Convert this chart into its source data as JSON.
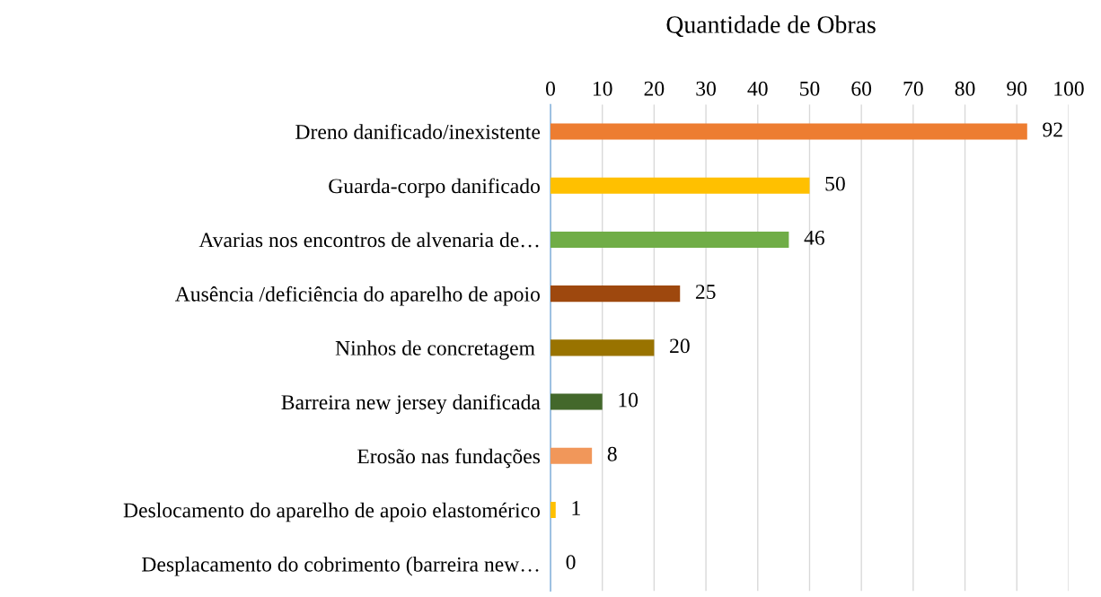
{
  "chart_data": {
    "type": "bar",
    "orientation": "horizontal",
    "title": "Quantidade de Obras",
    "categories": [
      "Dreno danificado/inexistente",
      "Guarda-corpo danificado",
      "Avarias nos encontros de alvenaria de…",
      "Ausência /deficiência do aparelho de apoio",
      "Ninhos de concretagem ",
      "Barreira new jersey danificada",
      "Erosão nas fundações",
      "Deslocamento do aparelho de apoio elastomérico",
      "Desplacamento do cobrimento (barreira new…"
    ],
    "values": [
      92,
      50,
      46,
      25,
      20,
      10,
      8,
      1,
      0
    ],
    "colors": [
      "#ed7d31",
      "#ffc000",
      "#70ad47",
      "#9e480e",
      "#997300",
      "#43682b",
      "#f1975a",
      "#ffc000",
      "#a5a5a5"
    ],
    "xlim": [
      0,
      100
    ],
    "xticks": [
      0,
      10,
      20,
      30,
      40,
      50,
      60,
      70,
      80,
      90,
      100
    ],
    "grid": "x",
    "data_labels": true
  }
}
